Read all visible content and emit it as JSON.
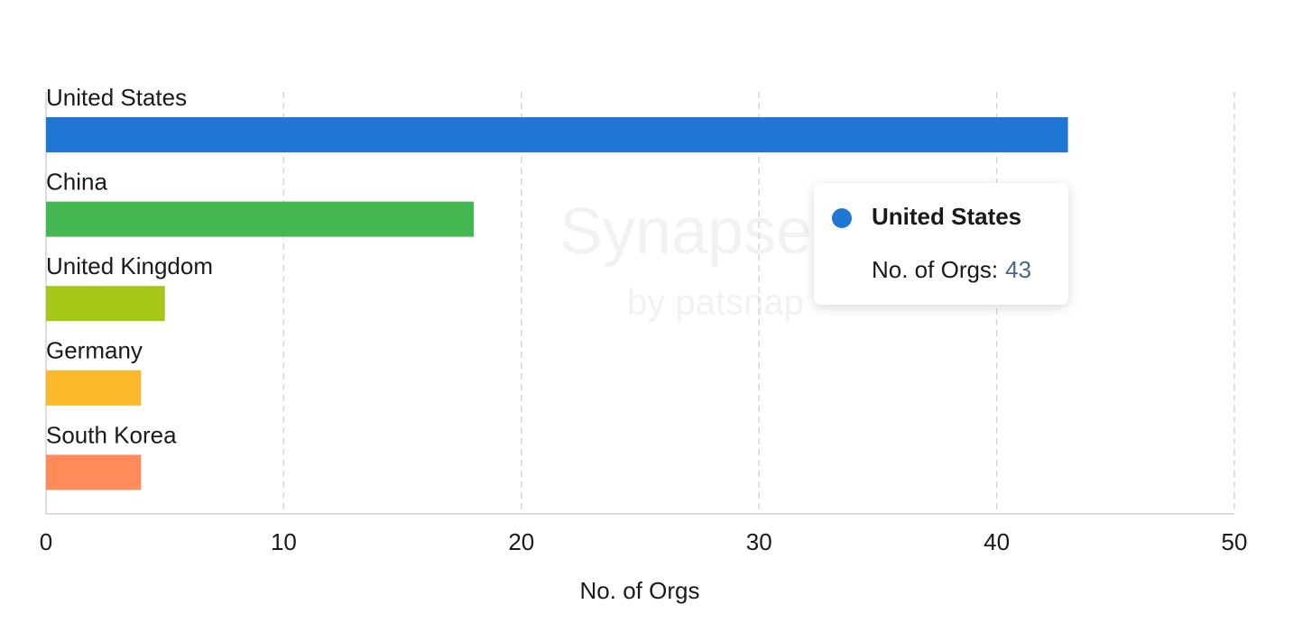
{
  "chart_data": {
    "type": "bar",
    "orientation": "horizontal",
    "categories": [
      "United States",
      "China",
      "United Kingdom",
      "Germany",
      "South Korea"
    ],
    "values": [
      43,
      18,
      5,
      4,
      4
    ],
    "colors": [
      "#1f77d3",
      "#45b750",
      "#a5c718",
      "#f9b92b",
      "#ff8a5a"
    ],
    "xlim": [
      0,
      50
    ],
    "xticks": [
      0,
      10,
      20,
      30,
      40,
      50
    ],
    "grid": true,
    "x_label": "No. of Orgs",
    "tooltip": {
      "category": "United States",
      "label": "No. of Orgs:",
      "value": 43
    },
    "watermark": [
      "Synapse",
      "by patsnap"
    ]
  }
}
